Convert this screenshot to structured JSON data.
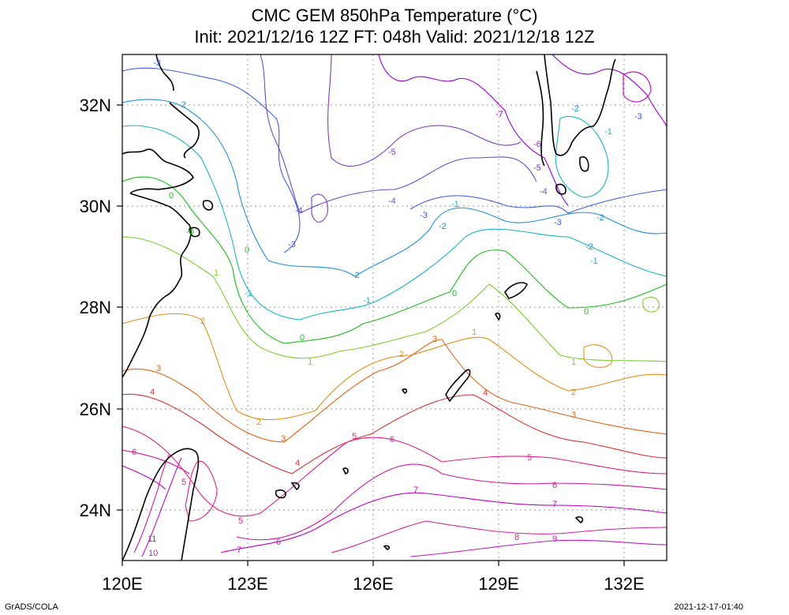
{
  "title": {
    "line1": "CMC GEM 850hPa Temperature (°C)",
    "line2": "Init: 2021/12/16 12Z  FT: 048h  Valid: 2021/12/18 12Z"
  },
  "axes": {
    "x_ticks": [
      "120E",
      "123E",
      "126E",
      "129E",
      "132E"
    ],
    "y_ticks": [
      "32N",
      "30N",
      "28N",
      "26N",
      "24N"
    ]
  },
  "footer": {
    "left": "GrADS/COLA",
    "right": "2021-12-17-01:40"
  },
  "contour_colors": {
    "-7": "#9400d3",
    "-6": "#9b30c8",
    "-5": "#7a3fc0",
    "-4": "#6a4dc8",
    "-3": "#3f5fe0",
    "-2": "#1e90dc",
    "-1": "#18b4c4",
    "0": "#22bb22",
    "1": "#7ccc2a",
    "2": "#e0901a",
    "3": "#e06418",
    "4": "#e03030",
    "5": "#e0208a",
    "6": "#cc1aa0",
    "7": "#c000c0",
    "8": "#d0209a",
    "9": "#c01ac0",
    "10": "#d020a0",
    "11": "#c010c0"
  }
}
